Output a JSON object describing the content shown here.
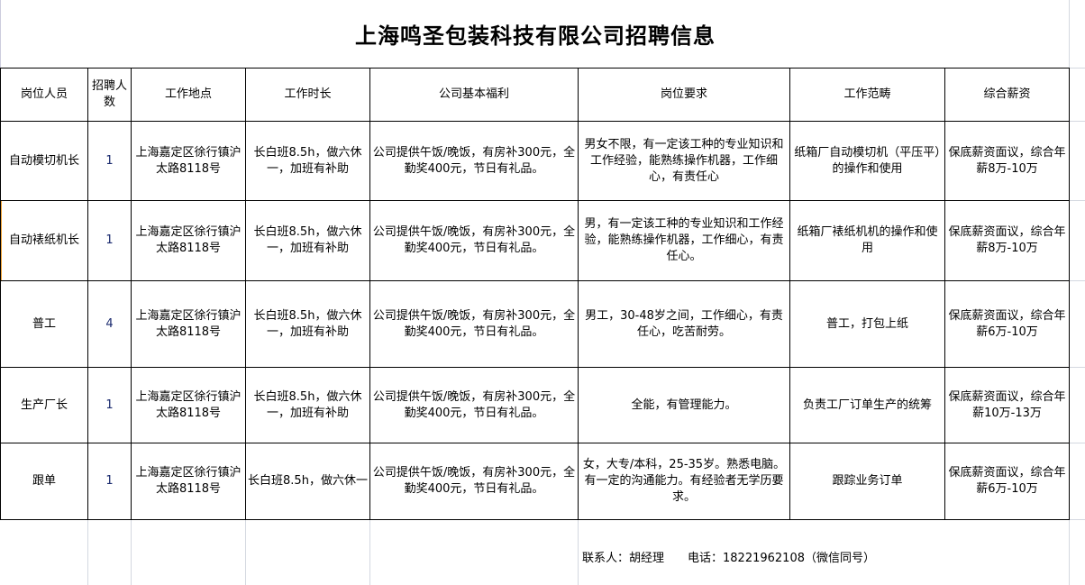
{
  "title": "上海鸣圣包装科技有限公司招聘信息",
  "headers": [
    "岗位人员",
    "招聘人数",
    "工作地点",
    "工作时长",
    "公司基本福利",
    "岗位要求",
    "工作范畴",
    "综合薪资"
  ],
  "rows": [
    [
      "自动模切机长",
      "1",
      "上海嘉定区徐行镇沪太路8118号",
      "长白班8.5h，做六休一，加班有补助",
      "公司提供午饭/晚饭，有房补300元，全勤奖400元，节日有礼品。",
      "男女不限，有一定该工种的专业知识和工作经验，能熟练操作机器，工作细心，有责任心",
      "纸箱厂自动模切机（平压平）的操作和使用",
      "保底薪资面议，综合年薪8万-10万"
    ],
    [
      "自动裱纸机长",
      "1",
      "上海嘉定区徐行镇沪太路8118号",
      "长白班8.5h，做六休一，加班有补助",
      "公司提供午饭/晚饭，有房补300元，全勤奖400元，节日有礼品。",
      "男，有一定该工种的专业知识和工作经验，能熟练操作机器，工作细心，有责任心。",
      "纸箱厂裱纸机机的操作和使用",
      "保底薪资面议，综合年薪8万-10万"
    ],
    [
      "普工",
      "4",
      "上海嘉定区徐行镇沪太路8118号",
      "长白班8.5h，做六休一，加班有补助",
      "公司提供午饭/晚饭，有房补300元，全勤奖400元，节日有礼品。",
      "男工，30-48岁之间，工作细心，有责任心，吃苦耐劳。",
      "普工，打包上纸",
      "保底薪资面议，综合年薪6万-10万"
    ],
    [
      "生产厂长",
      "1",
      "上海嘉定区徐行镇沪太路8118号",
      "长白班8.5h，做六休一，加班有补助",
      "公司提供午饭/晚饭，有房补300元，全勤奖400元，节日有礼品。",
      "全能，有管理能力。",
      "负责工厂订单生产的统筹",
      "保底薪资面议，综合年薪10万-13万"
    ],
    [
      "跟单",
      "1",
      "上海嘉定区徐行镇沪太路8118号",
      "长白班8.5h，做六休一",
      "公司提供午饭/晚饭，有房补300元，全勤奖400元，节日有礼品。",
      "女，大专/本科，25-35岁。熟悉电脑。有一定的沟通能力。有经验者无学历要求。",
      "跟踪业务订单",
      "保底薪资面议，综合年薪6万-10万"
    ]
  ],
  "footer": {
    "contact": "联系人：胡经理",
    "phone": "电话：18221962108（微信同号）"
  }
}
